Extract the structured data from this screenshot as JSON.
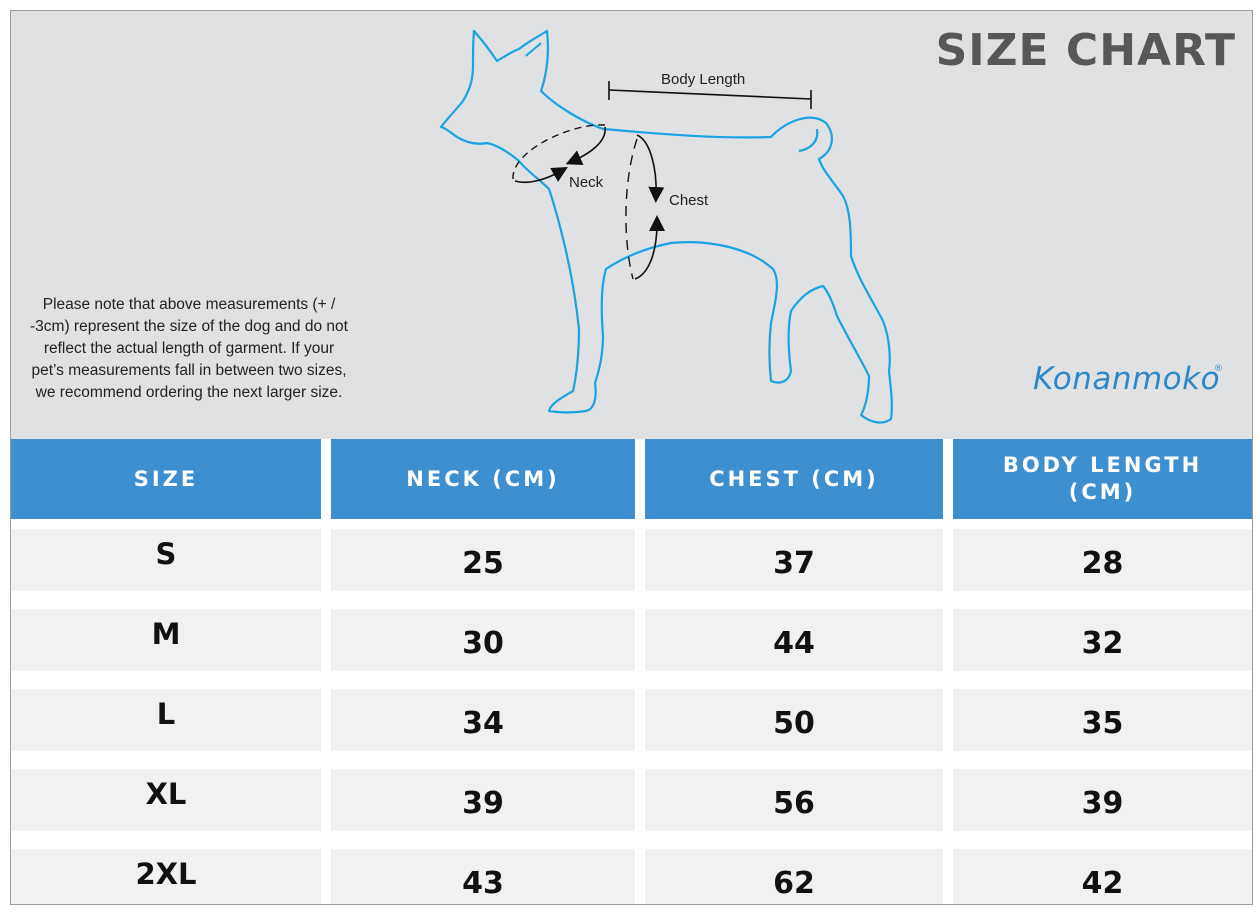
{
  "title": "SIZE CHART",
  "diagram": {
    "body_length_label": "Body Length",
    "neck_label": "Neck",
    "chest_label": "Chest",
    "dog_outline_color": "#1aa3e0"
  },
  "note": "Please note that above measurements (+ / -3cm) represent the size of the dog and do not reflect the actual length of garment.  If your pet’s measurements fall in between two sizes, we recommend ordering the next larger size.",
  "brand": {
    "name": "Konanmoko",
    "reg": "®",
    "color": "#2e88c8"
  },
  "table": {
    "header_color": "#3d8fd0",
    "headers": [
      "SIZE",
      "NECK (CM)",
      "CHEST (CM)",
      "BODY LENGTH (CM)"
    ],
    "rows": [
      {
        "size": "S",
        "neck": "25",
        "chest": "37",
        "body_length": "28"
      },
      {
        "size": "M",
        "neck": "30",
        "chest": "44",
        "body_length": "32"
      },
      {
        "size": "L",
        "neck": "34",
        "chest": "50",
        "body_length": "35"
      },
      {
        "size": "XL",
        "neck": "39",
        "chest": "56",
        "body_length": "39"
      },
      {
        "size": "2XL",
        "neck": "43",
        "chest": "62",
        "body_length": "42"
      }
    ]
  }
}
